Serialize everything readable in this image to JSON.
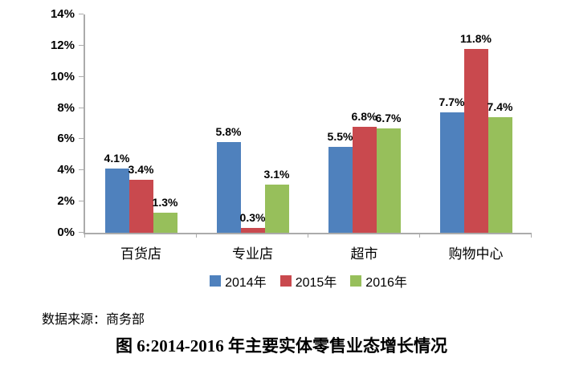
{
  "chart_data": {
    "type": "bar",
    "title": "",
    "categories": [
      "百货店",
      "专业店",
      "超市",
      "购物中心"
    ],
    "series": [
      {
        "name": "2014年",
        "color": "#4F81BD",
        "values": [
          4.1,
          5.8,
          5.5,
          7.7
        ]
      },
      {
        "name": "2015年",
        "color": "#C9494E",
        "values": [
          3.4,
          0.3,
          6.8,
          11.8
        ]
      },
      {
        "name": "2016年",
        "color": "#97BF5B",
        "values": [
          1.3,
          3.1,
          6.7,
          7.4
        ]
      }
    ],
    "data_labels": [
      "4.1%",
      "5.8%",
      "5.5%",
      "7.7%",
      "3.4%",
      "0.3%",
      "6.8%",
      "11.8%",
      "1.3%",
      "3.1%",
      "6.7%",
      "7.4%"
    ],
    "y_axis": {
      "min": 0,
      "max": 14,
      "step": 2,
      "tick_labels": [
        "0%",
        "2%",
        "4%",
        "6%",
        "8%",
        "10%",
        "12%",
        "14%"
      ],
      "suffix": "%"
    },
    "grid": false,
    "legend_position": "bottom",
    "legend_labels": [
      "2014年",
      "2015年",
      "2016年"
    ],
    "axis_color": "#ABABAB"
  },
  "source_note": "数据来源：商务部",
  "caption": "图 6:2014-2016 年主要实体零售业态增长情况"
}
